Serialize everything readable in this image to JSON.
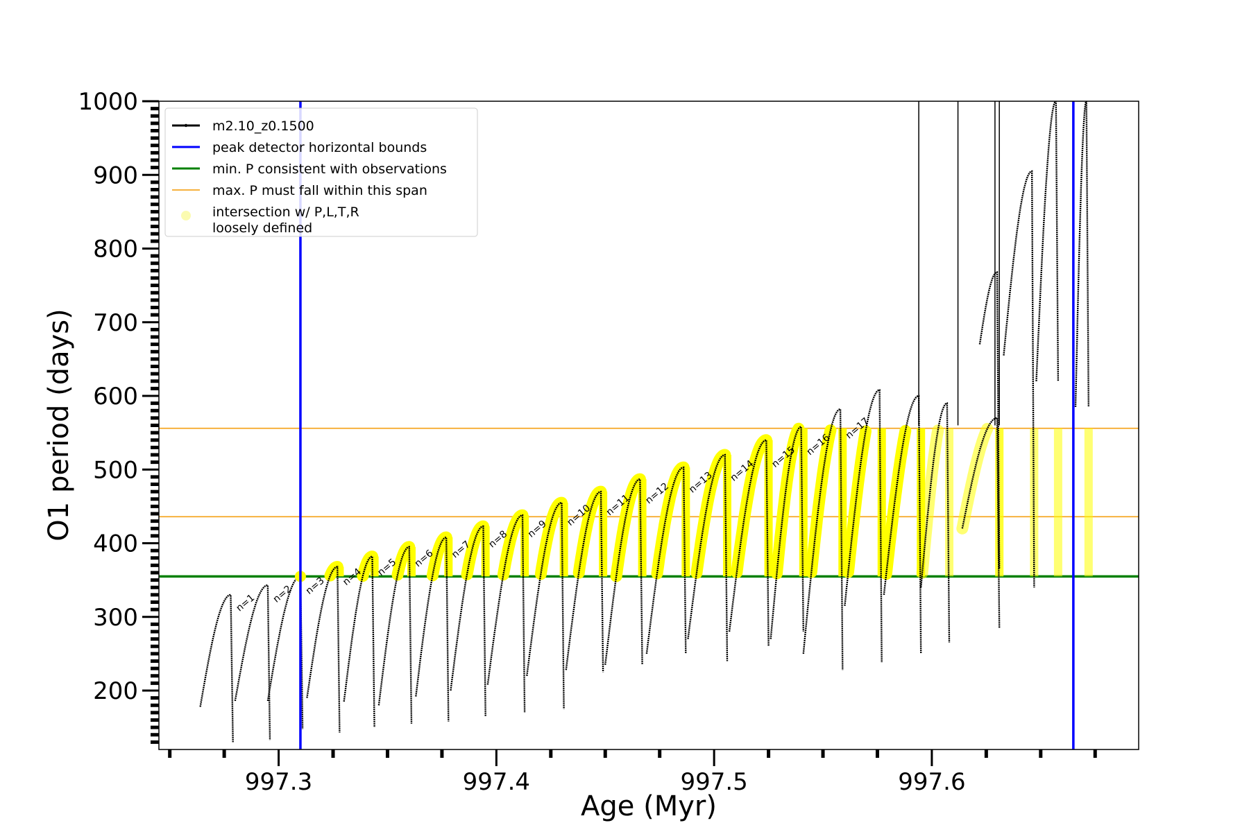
{
  "chart_data": {
    "type": "line",
    "title": "",
    "xlabel": "Age (Myr)",
    "ylabel": "O1 period (days)",
    "xlim": [
      997.245,
      997.695
    ],
    "ylim": [
      120,
      1000
    ],
    "x_ticks": [
      997.3,
      997.4,
      997.5,
      997.6
    ],
    "x_tick_labels": [
      "997.3",
      "997.4",
      "997.5",
      "997.6"
    ],
    "y_ticks": [
      200,
      300,
      400,
      500,
      600,
      700,
      800,
      900,
      1000
    ],
    "y_tick_labels": [
      "200",
      "300",
      "400",
      "500",
      "600",
      "700",
      "800",
      "900",
      "1000"
    ],
    "grid": false,
    "legend_placement": "top-left",
    "colors": {
      "model": "#000000",
      "bounds": "#0000ff",
      "min_p": "#008000",
      "max_p_span": "#f5a623",
      "intersection": "#ffff00"
    },
    "legend": [
      {
        "label": "m2.10_z0.1500",
        "kind": "line-marker",
        "color": "#000000"
      },
      {
        "label": "peak detector horizontal bounds",
        "kind": "line",
        "color": "#0000ff"
      },
      {
        "label": "min. P consistent with observations",
        "kind": "line",
        "color": "#008000"
      },
      {
        "label": "max. P must fall within this span",
        "kind": "line",
        "color": "#f5a623"
      },
      {
        "label": "intersection w/ P,L,T,R",
        "label2": "loosely defined",
        "kind": "marker",
        "color": "#fbfbb0"
      }
    ],
    "vertical_lines": [
      997.31,
      997.665
    ],
    "min_period": 355,
    "max_period_span": [
      436,
      556
    ],
    "series": [
      {
        "name": "m2.10_z0.1500",
        "cycles": [
          {
            "x0": 997.264,
            "x1": 997.278,
            "y0": 178,
            "ypeak": 330,
            "ymin": 130
          },
          {
            "x0": 997.28,
            "x1": 997.295,
            "y0": 186,
            "ypeak": 343,
            "ymin": 133
          },
          {
            "x0": 997.295,
            "x1": 997.31,
            "y0": 186,
            "ypeak": 355,
            "ymin": 148
          },
          {
            "x0": 997.313,
            "x1": 997.327,
            "y0": 190,
            "ypeak": 368,
            "ymin": 143
          },
          {
            "x0": 997.33,
            "x1": 997.343,
            "y0": 185,
            "ypeak": 382,
            "ymin": 150
          },
          {
            "x0": 997.346,
            "x1": 997.36,
            "y0": 180,
            "ypeak": 395,
            "ymin": 155
          },
          {
            "x0": 997.363,
            "x1": 997.377,
            "y0": 192,
            "ypeak": 408,
            "ymin": 158
          },
          {
            "x0": 997.379,
            "x1": 997.394,
            "y0": 200,
            "ypeak": 423,
            "ymin": 165
          },
          {
            "x0": 997.396,
            "x1": 997.412,
            "y0": 208,
            "ypeak": 438,
            "ymin": 170
          },
          {
            "x0": 997.414,
            "x1": 997.43,
            "y0": 220,
            "ypeak": 455,
            "ymin": 175
          },
          {
            "x0": 997.432,
            "x1": 997.448,
            "y0": 228,
            "ypeak": 470,
            "ymin": 225
          },
          {
            "x0": 997.45,
            "x1": 997.466,
            "y0": 235,
            "ypeak": 487,
            "ymin": 235
          },
          {
            "x0": 997.469,
            "x1": 997.486,
            "y0": 250,
            "ypeak": 503,
            "ymin": 250
          },
          {
            "x0": 997.488,
            "x1": 997.505,
            "y0": 270,
            "ypeak": 520,
            "ymin": 240
          },
          {
            "x0": 997.507,
            "x1": 997.524,
            "y0": 280,
            "ypeak": 540,
            "ymin": 260
          },
          {
            "x0": 997.526,
            "x1": 997.54,
            "y0": 270,
            "ypeak": 558,
            "ymin": 280
          },
          {
            "x0": 997.541,
            "x1": 997.558,
            "y0": 250,
            "ypeak": 582,
            "ymin": 228
          },
          {
            "x0": 997.56,
            "x1": 997.576,
            "y0": 315,
            "ypeak": 608,
            "ymin": 238
          },
          {
            "x0": 997.578,
            "x1": 997.594,
            "y0": 330,
            "ypeak": 600,
            "ymin": 250
          },
          {
            "x0": 997.595,
            "x1": 997.607,
            "y0": 340,
            "ypeak": 590,
            "ymin": 265
          },
          {
            "x0": 997.614,
            "x1": 997.63,
            "y0": 420,
            "ypeak": 570,
            "ymin": 285
          },
          {
            "x0": 997.622,
            "x1": 997.63,
            "y0": 670,
            "ypeak": 768,
            "ymin": 365
          },
          {
            "x0": 997.633,
            "x1": 997.646,
            "y0": 655,
            "ypeak": 905,
            "ymin": 340
          },
          {
            "x0": 997.648,
            "x1": 997.657,
            "y0": 620,
            "ypeak": 1000,
            "ymin": 620
          },
          {
            "x0": 997.666,
            "x1": 997.671,
            "y0": 585,
            "ypeak": 1000,
            "ymin": 585
          }
        ]
      }
    ],
    "annotations": [
      "n=1",
      "n=2",
      "n=3",
      "n=4",
      "n=5",
      "n=6",
      "n=7",
      "n=8",
      "n=9",
      "n=10",
      "n=11",
      "n=12",
      "n=13",
      "n=14",
      "n=15",
      "n=16",
      "n=17"
    ]
  }
}
